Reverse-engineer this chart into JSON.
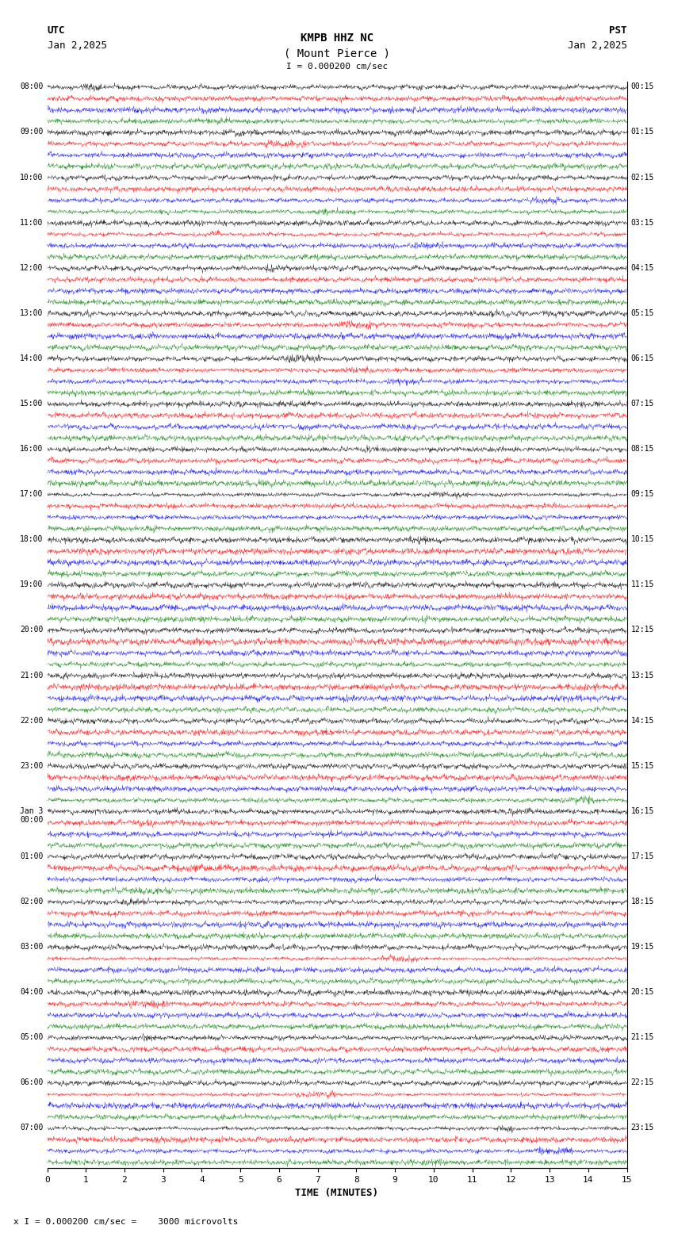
{
  "title_line1": "KMPB HHZ NC",
  "title_line2": "( Mount Pierce )",
  "scale_label": "I = 0.000200 cm/sec",
  "left_header": "UTC",
  "right_header": "PST",
  "left_date": "Jan 2,2025",
  "right_date": "Jan 2,2025",
  "bottom_label": "TIME (MINUTES)",
  "bottom_note": "x I = 0.000200 cm/sec =    3000 microvolts",
  "xlabel_ticks": [
    0,
    1,
    2,
    3,
    4,
    5,
    6,
    7,
    8,
    9,
    10,
    11,
    12,
    13,
    14,
    15
  ],
  "left_times": [
    "08:00",
    "09:00",
    "10:00",
    "11:00",
    "12:00",
    "13:00",
    "14:00",
    "15:00",
    "16:00",
    "17:00",
    "18:00",
    "19:00",
    "20:00",
    "21:00",
    "22:00",
    "23:00",
    "Jan 3\n00:00",
    "01:00",
    "02:00",
    "03:00",
    "04:00",
    "05:00",
    "06:00",
    "07:00"
  ],
  "right_times": [
    "00:15",
    "01:15",
    "02:15",
    "03:15",
    "04:15",
    "05:15",
    "06:15",
    "07:15",
    "08:15",
    "09:15",
    "10:15",
    "11:15",
    "12:15",
    "13:15",
    "14:15",
    "15:15",
    "16:15",
    "17:15",
    "18:15",
    "19:15",
    "20:15",
    "21:15",
    "22:15",
    "23:15"
  ],
  "n_rows": 24,
  "colors_cycle": [
    "black",
    "red",
    "blue",
    "green"
  ],
  "traces_per_row": 4,
  "background_color": "white",
  "fig_width": 8.5,
  "fig_height": 15.84
}
